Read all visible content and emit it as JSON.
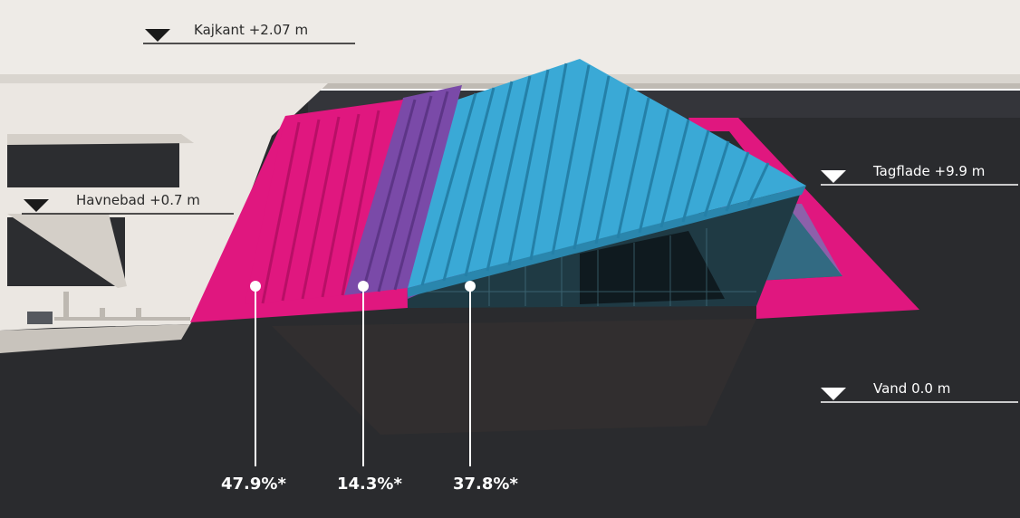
{
  "levels": {
    "kajkant": "Kajkant +2.07 m",
    "havnebad": "Havnebad +0.7 m",
    "tagflade": "Tagflade +9.9 m",
    "vand": "Vand 0.0 m"
  },
  "shares": [
    {
      "value": "47.9%*",
      "color": "#e0177f"
    },
    {
      "value": "14.3%*",
      "color": "#7a4aa8"
    },
    {
      "value": "37.8%*",
      "color": "#3aa9d6"
    }
  ],
  "colors": {
    "water": "#2a2b2e",
    "quay": "#ece8e3",
    "magenta": "#e0177f",
    "purple": "#7a4aa8",
    "cyan": "#3aa9d6"
  }
}
